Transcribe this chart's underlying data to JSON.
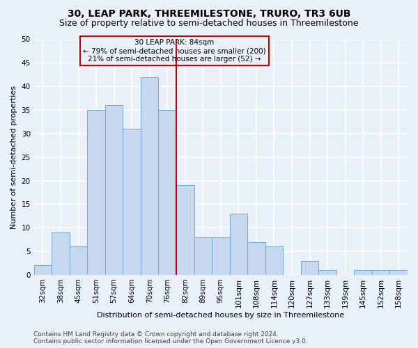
{
  "title": "30, LEAP PARK, THREEMILESTONE, TRURO, TR3 6UB",
  "subtitle": "Size of property relative to semi-detached houses in Threemilestone",
  "xlabel": "Distribution of semi-detached houses by size in Threemilestone",
  "ylabel": "Number of semi-detached properties",
  "categories": [
    "32sqm",
    "38sqm",
    "45sqm",
    "51sqm",
    "57sqm",
    "64sqm",
    "70sqm",
    "76sqm",
    "82sqm",
    "89sqm",
    "95sqm",
    "101sqm",
    "108sqm",
    "114sqm",
    "120sqm",
    "127sqm",
    "133sqm",
    "139sqm",
    "145sqm",
    "152sqm",
    "158sqm"
  ],
  "values": [
    2,
    9,
    6,
    35,
    36,
    31,
    42,
    35,
    19,
    8,
    8,
    13,
    7,
    6,
    0,
    3,
    1,
    0,
    1,
    1,
    1
  ],
  "bar_color": "#c5d8ed",
  "bar_edge_color": "#6aaad4",
  "vline_x": 7.5,
  "vline_color": "#cc0000",
  "ylim": [
    0,
    50
  ],
  "yticks": [
    0,
    5,
    10,
    15,
    20,
    25,
    30,
    35,
    40,
    45,
    50
  ],
  "annotation_title": "30 LEAP PARK: 84sqm",
  "annotation_line1": "← 79% of semi-detached houses are smaller (200)",
  "annotation_line2": "21% of semi-detached houses are larger (52) →",
  "annotation_box_color": "#cc0000",
  "footer_line1": "Contains HM Land Registry data © Crown copyright and database right 2024.",
  "footer_line2": "Contains public sector information licensed under the Open Government Licence v3.0.",
  "bg_color": "#eaf0f8",
  "grid_color": "#ffffff",
  "title_fontsize": 10,
  "subtitle_fontsize": 9,
  "axis_label_fontsize": 8,
  "tick_fontsize": 7.5,
  "footer_fontsize": 6.5
}
